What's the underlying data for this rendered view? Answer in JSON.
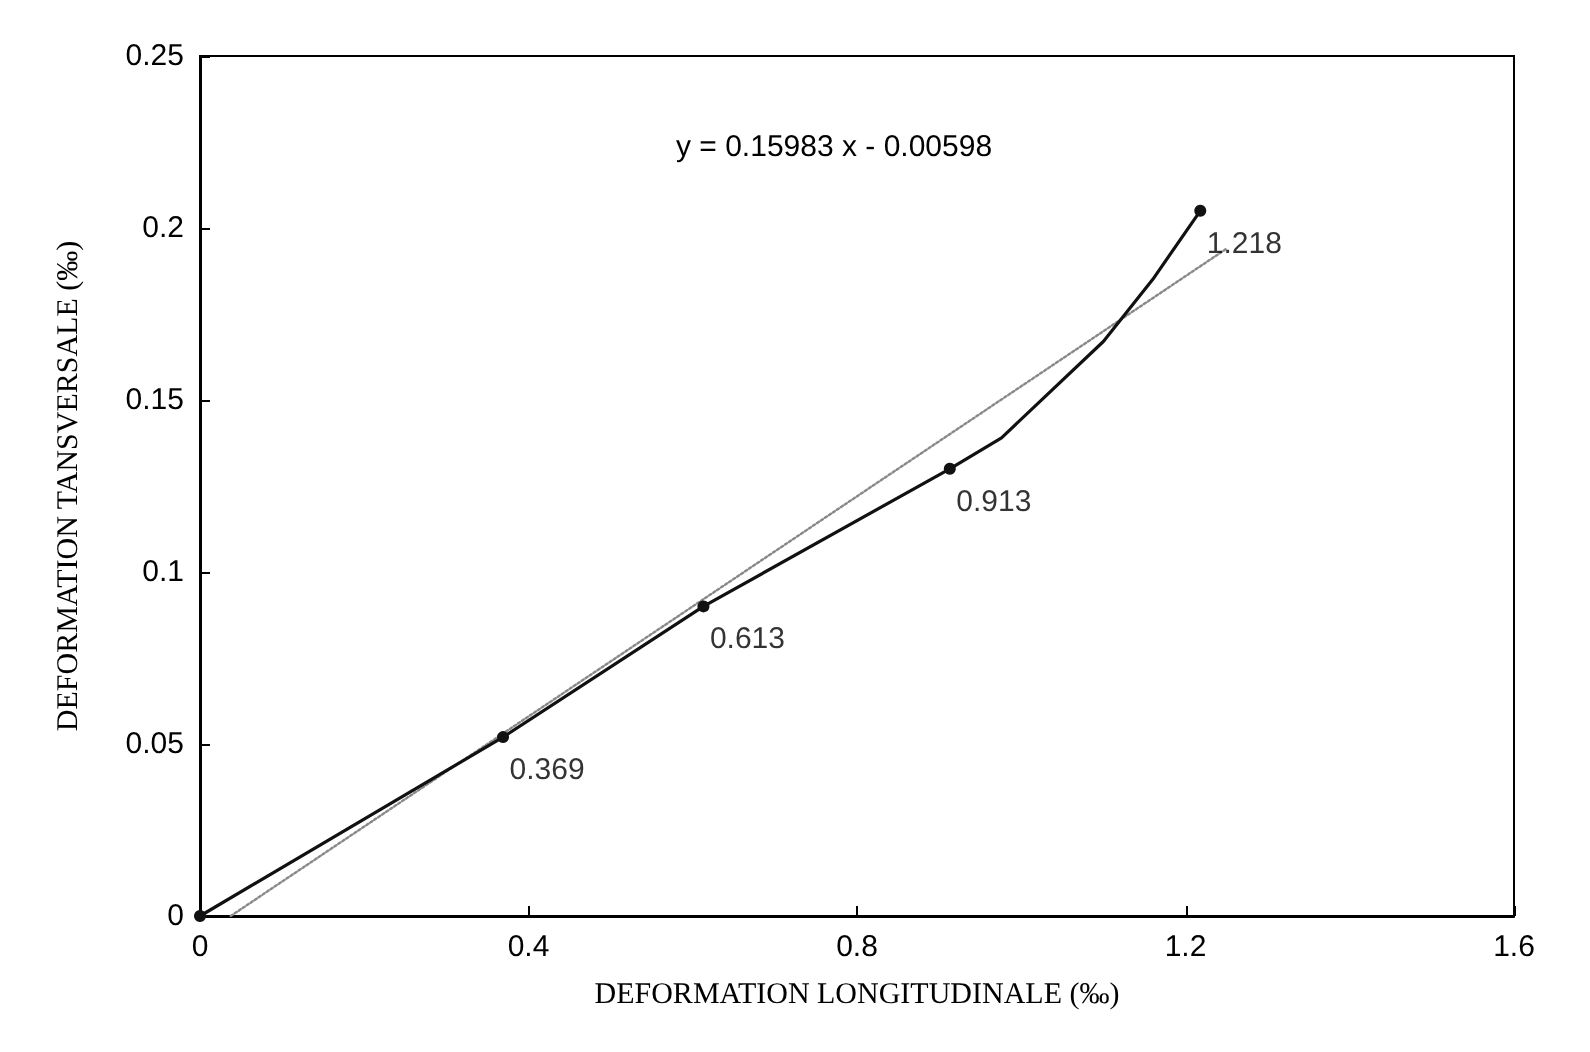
{
  "chart_data": {
    "type": "line",
    "xlabel": "DEFORMATION LONGITUDINALE (‰)",
    "ylabel": "DEFORMATION TANSVERSALE (‰)",
    "xlim": [
      0,
      1.6
    ],
    "xticks": [
      0,
      0.4,
      0.8,
      1.2,
      1.6
    ],
    "ylim": [
      0,
      0.25
    ],
    "yticks": [
      0,
      0.05,
      0.1,
      0.15,
      0.2,
      0.25
    ],
    "grid": false,
    "annotations": [
      "y = 0.15983 x - 0.00598",
      {
        "text": "0.369",
        "x": 0.369,
        "y": 0.052
      },
      {
        "text": "0.613",
        "x": 0.613,
        "y": 0.09
      },
      {
        "text": "0.913",
        "x": 0.913,
        "y": 0.13
      },
      {
        "text": "1.218",
        "x": 1.218,
        "y": 0.205
      }
    ],
    "series": [
      {
        "color": "#111111",
        "marker": "circle",
        "line_style": "solid",
        "x": [
          0,
          0.369,
          0.613,
          0.913,
          0.976,
          1.1,
          1.16,
          1.218
        ],
        "values": [
          0,
          0.052,
          0.09,
          0.13,
          0.139,
          0.167,
          0.185,
          0.205
        ]
      },
      {
        "color": "#888888",
        "marker": "none",
        "line_style": "dotted",
        "x": [
          0.0374,
          1.25
        ],
        "values": [
          0,
          0.194
        ]
      }
    ]
  }
}
